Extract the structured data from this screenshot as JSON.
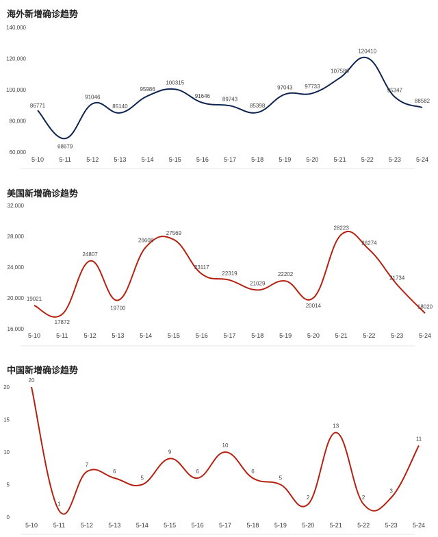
{
  "chart_data": [
    {
      "type": "line",
      "title": "海外新增确诊趋势",
      "categories": [
        "5-10",
        "5-11",
        "5-12",
        "5-13",
        "5-14",
        "5-15",
        "5-16",
        "5-17",
        "5-18",
        "5-19",
        "5-20",
        "5-21",
        "5-22",
        "5-23",
        "5-24"
      ],
      "series": [
        {
          "values": [
            86771,
            68679,
            91046,
            85140,
            95986,
            100315,
            91646,
            89743,
            85398,
            97043,
            97733,
            107586,
            120410,
            95347,
            88582
          ]
        }
      ],
      "y_ticks": [
        "140,000",
        "120,000",
        "100,000",
        "80,000",
        "60,000"
      ],
      "ylim": [
        60000,
        140000
      ],
      "color": "#0d2350",
      "grid": false
    },
    {
      "type": "line",
      "title": "美国新增确诊趋势",
      "categories": [
        "5-10",
        "5-11",
        "5-12",
        "5-13",
        "5-14",
        "5-15",
        "5-16",
        "5-17",
        "5-18",
        "5-19",
        "5-20",
        "5-21",
        "5-22",
        "5-23",
        "5-24"
      ],
      "series": [
        {
          "values": [
            19021,
            17872,
            24807,
            19700,
            26608,
            27569,
            23117,
            22319,
            21029,
            22202,
            20014,
            28223,
            26274,
            21734,
            18020
          ]
        }
      ],
      "y_ticks": [
        "32,000",
        "28,000",
        "24,000",
        "20,000",
        "16,000"
      ],
      "ylim": [
        16000,
        32000
      ],
      "color": "#b52010",
      "grid": false
    },
    {
      "type": "line",
      "title": "中国新增确诊趋势",
      "categories": [
        "5-10",
        "5-11",
        "5-12",
        "5-13",
        "5-14",
        "5-15",
        "5-16",
        "5-17",
        "5-18",
        "5-19",
        "5-20",
        "5-21",
        "5-22",
        "5-23",
        "5-24"
      ],
      "series": [
        {
          "values": [
            20,
            1,
            7,
            6,
            5,
            9,
            6,
            10,
            6,
            5,
            2,
            13,
            2,
            3,
            11
          ]
        }
      ],
      "y_ticks": [
        "20",
        "15",
        "10",
        "5",
        "0"
      ],
      "ylim": [
        0,
        20
      ],
      "color": "#b52010",
      "grid": false
    }
  ]
}
